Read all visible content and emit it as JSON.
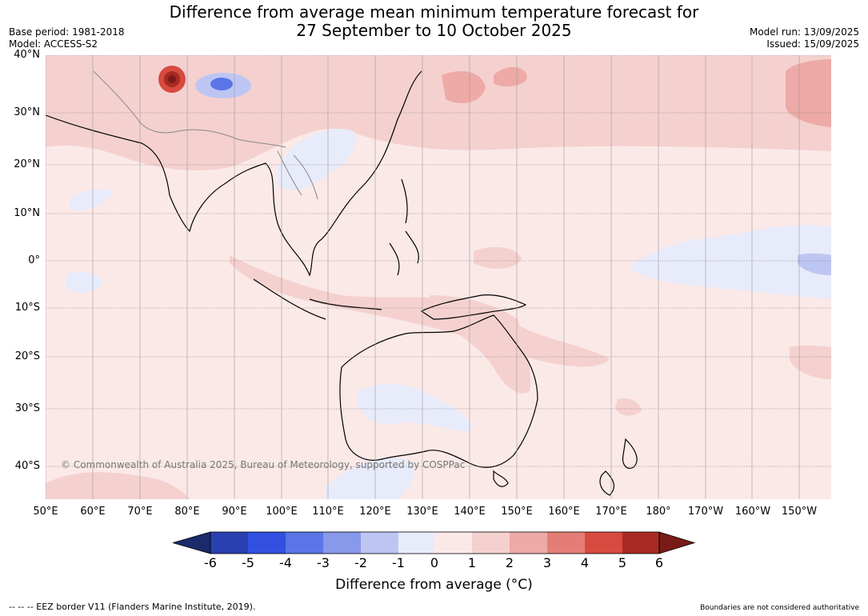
{
  "title_line1": "Difference from average mean minimum temperature forecast for",
  "title_line2": "27 September to 10 October 2025",
  "meta_left": [
    "Base period: 1981-2018",
    "Model: ACCESS-S2"
  ],
  "meta_right": [
    "Model run: 13/09/2025",
    "Issued: 15/09/2025"
  ],
  "lat_labels": [
    "40°N",
    "30°N",
    "20°N",
    "10°N",
    "0°",
    "10°S",
    "20°S",
    "30°S",
    "40°S"
  ],
  "lon_labels": [
    "50°E",
    "60°E",
    "70°E",
    "80°E",
    "90°E",
    "100°E",
    "110°E",
    "120°E",
    "130°E",
    "140°E",
    "150°E",
    "160°E",
    "170°E",
    "180°",
    "170°W",
    "160°W",
    "150°W"
  ],
  "copyright": "© Commonwealth of Australia 2025, Bureau of Meteorology, supported by COSPPac",
  "colorbar": {
    "ticks": [
      "-6",
      "-5",
      "-4",
      "-3",
      "-2",
      "-1",
      "0",
      "1",
      "2",
      "3",
      "4",
      "5",
      "6"
    ],
    "colors": [
      "#1b2a6b",
      "#2a3fb0",
      "#3150e0",
      "#5a75e6",
      "#8898ea",
      "#bdc6f2",
      "#e8ebfa",
      "#fbe9e8",
      "#f4d1cf",
      "#edaaa6",
      "#e47d76",
      "#d84a3f",
      "#a82a22",
      "#7a1a16"
    ],
    "label": "Difference from average (°C)"
  },
  "footer_left": "-- -- -- EEZ border V11 (Flanders Marine Institute, 2019).",
  "footer_right": "Boundaries are not considered authoritative"
}
